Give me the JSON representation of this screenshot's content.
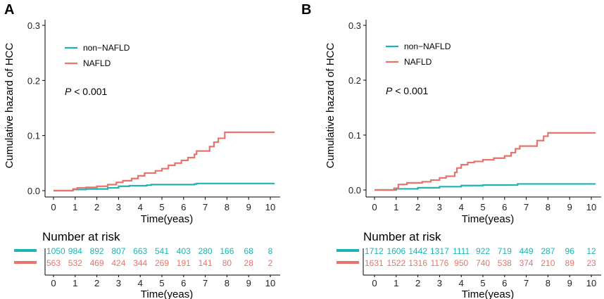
{
  "colors": {
    "non_nafld": "#1fb3b3",
    "nafld": "#e8736b",
    "axis": "#000000"
  },
  "chart_data": [
    {
      "panel_label": "A",
      "type": "line",
      "step": true,
      "ylabel": "Cumulative hazard of HCC",
      "xlabel": "Time(yeas)",
      "xlim": [
        0,
        10
      ],
      "ylim": [
        0,
        0.3
      ],
      "xticks": [
        "0",
        "1",
        "2",
        "3",
        "4",
        "5",
        "6",
        "7",
        "8",
        "9",
        "10"
      ],
      "yticks": [
        "0.0",
        "0.1",
        "0.2",
        "0.3"
      ],
      "legend": [
        "non−NAFLD",
        "NAFLD"
      ],
      "legend_position": "top-left",
      "annotation_p": "P",
      "annotation_rest": " < 0.001",
      "series": [
        {
          "name": "non−NAFLD",
          "color": "#1fb3b3",
          "points": [
            [
              0,
              0
            ],
            [
              0.9,
              0.002
            ],
            [
              1.5,
              0.003
            ],
            [
              2.5,
              0.005
            ],
            [
              3.0,
              0.008
            ],
            [
              3.5,
              0.009
            ],
            [
              4.3,
              0.01
            ],
            [
              4.5,
              0.011
            ],
            [
              6.5,
              0.012
            ],
            [
              6.6,
              0.013
            ],
            [
              10.2,
              0.013
            ]
          ]
        },
        {
          "name": "NAFLD",
          "color": "#e8736b",
          "points": [
            [
              0,
              0
            ],
            [
              0.9,
              0.003
            ],
            [
              1.1,
              0.005
            ],
            [
              1.5,
              0.006
            ],
            [
              2.0,
              0.008
            ],
            [
              2.5,
              0.011
            ],
            [
              2.9,
              0.015
            ],
            [
              3.2,
              0.018
            ],
            [
              3.6,
              0.022
            ],
            [
              3.9,
              0.027
            ],
            [
              4.2,
              0.032
            ],
            [
              4.7,
              0.036
            ],
            [
              5.0,
              0.04
            ],
            [
              5.3,
              0.046
            ],
            [
              5.6,
              0.05
            ],
            [
              5.9,
              0.055
            ],
            [
              6.2,
              0.06
            ],
            [
              6.5,
              0.066
            ],
            [
              6.6,
              0.072
            ],
            [
              7.2,
              0.08
            ],
            [
              7.4,
              0.088
            ],
            [
              7.6,
              0.095
            ],
            [
              7.9,
              0.106
            ],
            [
              8.2,
              0.106
            ],
            [
              10.2,
              0.106
            ]
          ]
        }
      ],
      "risk_table": {
        "title": "Number at risk",
        "xlabel": "Time(yeas)",
        "rows": [
          {
            "group": "non−NAFLD",
            "color": "#1fb3b3",
            "values": [
              "1050",
              "984",
              "892",
              "807",
              "663",
              "541",
              "403",
              "280",
              "166",
              "68",
              "8"
            ]
          },
          {
            "group": "NAFLD",
            "color": "#e8736b",
            "values": [
              "563",
              "532",
              "469",
              "424",
              "344",
              "269",
              "191",
              "141",
              "80",
              "28",
              "2"
            ]
          }
        ]
      }
    },
    {
      "panel_label": "B",
      "type": "line",
      "step": true,
      "ylabel": "Cumulative hazard of HCC",
      "xlabel": "Time(yeas)",
      "xlim": [
        0,
        10
      ],
      "ylim": [
        0,
        0.3
      ],
      "xticks": [
        "0",
        "1",
        "2",
        "3",
        "4",
        "5",
        "6",
        "7",
        "8",
        "9",
        "10"
      ],
      "yticks": [
        "0.0",
        "0.1",
        "0.2",
        "0.3"
      ],
      "legend": [
        "non−NAFLD",
        "NAFLD"
      ],
      "legend_position": "top-left",
      "annotation_p": "P",
      "annotation_rest": " < 0.001",
      "series": [
        {
          "name": "non−NAFLD",
          "color": "#1fb3b3",
          "points": [
            [
              0,
              0
            ],
            [
              1.0,
              0.002
            ],
            [
              2.0,
              0.004
            ],
            [
              3.0,
              0.006
            ],
            [
              4.0,
              0.008
            ],
            [
              5.0,
              0.009
            ],
            [
              6.6,
              0.011
            ],
            [
              10.2,
              0.011
            ]
          ]
        },
        {
          "name": "NAFLD",
          "color": "#e8736b",
          "points": [
            [
              0,
              0
            ],
            [
              0.9,
              0.003
            ],
            [
              1.1,
              0.01
            ],
            [
              1.5,
              0.013
            ],
            [
              2.2,
              0.015
            ],
            [
              2.6,
              0.018
            ],
            [
              3.0,
              0.022
            ],
            [
              3.3,
              0.025
            ],
            [
              3.7,
              0.032
            ],
            [
              3.8,
              0.04
            ],
            [
              4.0,
              0.046
            ],
            [
              4.3,
              0.05
            ],
            [
              4.6,
              0.052
            ],
            [
              5.0,
              0.055
            ],
            [
              5.5,
              0.058
            ],
            [
              6.0,
              0.062
            ],
            [
              6.3,
              0.068
            ],
            [
              6.5,
              0.075
            ],
            [
              6.7,
              0.08
            ],
            [
              7.5,
              0.09
            ],
            [
              7.8,
              0.098
            ],
            [
              8.0,
              0.104
            ],
            [
              8.2,
              0.104
            ],
            [
              10.2,
              0.104
            ]
          ]
        }
      ],
      "risk_table": {
        "title": "Number at risk",
        "xlabel": "Time(yeas)",
        "rows": [
          {
            "group": "non−NAFLD",
            "color": "#1fb3b3",
            "values": [
              "1712",
              "1606",
              "1442",
              "1317",
              "1111",
              "922",
              "719",
              "449",
              "287",
              "96",
              "12"
            ]
          },
          {
            "group": "NAFLD",
            "color": "#e8736b",
            "values": [
              "1631",
              "1522",
              "1316",
              "1176",
              "950",
              "740",
              "538",
              "374",
              "210",
              "89",
              "23"
            ]
          }
        ]
      }
    }
  ]
}
